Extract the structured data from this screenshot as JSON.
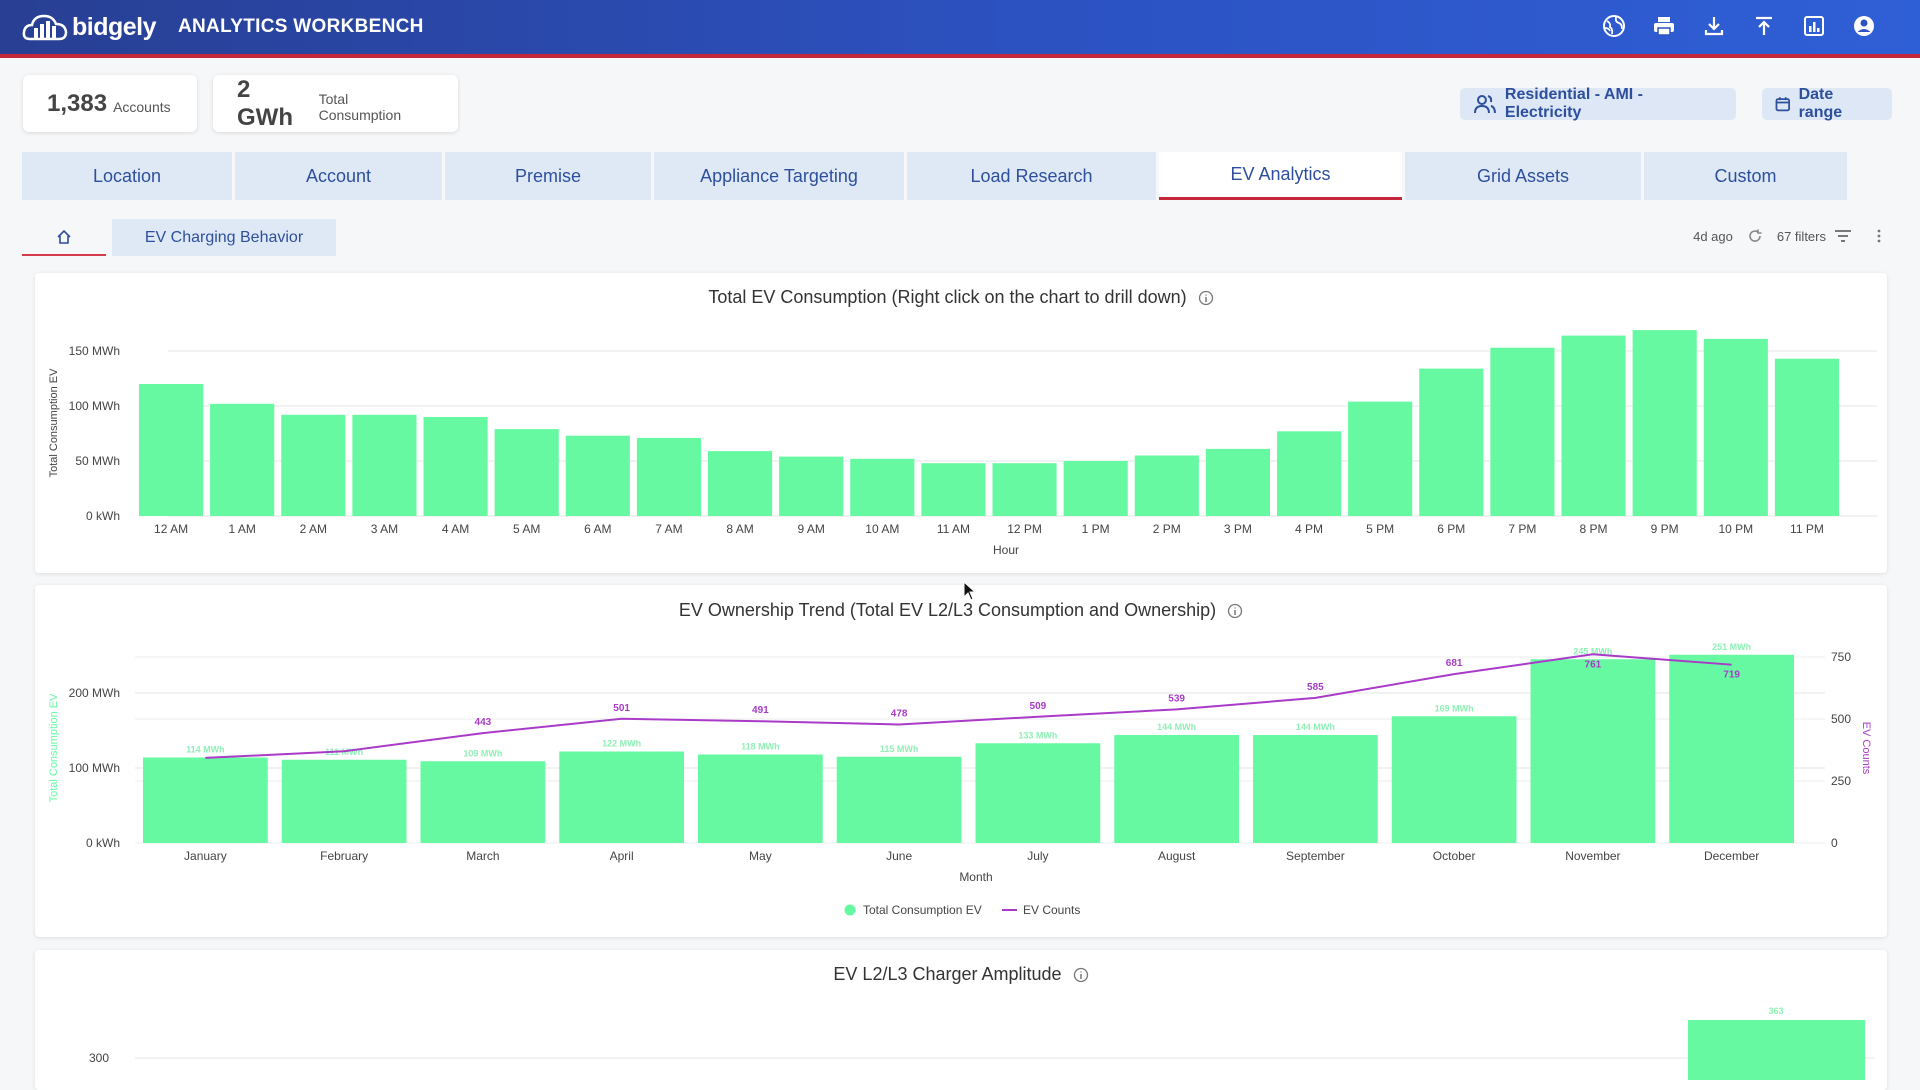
{
  "header": {
    "logo_text": "bidgely",
    "app_title": "ANALYTICS WORKBENCH",
    "icons": [
      "globe-icon",
      "print-icon",
      "download-icon",
      "upload-icon",
      "report-icon",
      "user-account-icon"
    ]
  },
  "kpis": [
    {
      "value": "1,383",
      "label": "Accounts"
    },
    {
      "value": "2 GWh",
      "label": "Total Consumption"
    }
  ],
  "segment_pill": "Residential - AMI - Electricity",
  "date_range_pill": "Date range",
  "tabs": [
    "Location",
    "Account",
    "Premise",
    "Appliance Targeting",
    "Load Research",
    "EV Analytics",
    "Grid Assets",
    "Custom"
  ],
  "active_tab": "EV Analytics",
  "subtab": "EV Charging Behavior",
  "refresh_age": "4d ago",
  "filters_label": "67 filters",
  "colors": {
    "bar": "#66f9a2",
    "line": "#a93bc8",
    "accent": "#c6263a",
    "brand": "#2c52c2"
  },
  "chart_data": [
    {
      "type": "bar",
      "title": "Total EV Consumption (Right click on the chart to drill down)",
      "xlabel": "Hour",
      "ylabel": "Total Consumption EV",
      "categories": [
        "12 AM",
        "1 AM",
        "2 AM",
        "3 AM",
        "4 AM",
        "5 AM",
        "6 AM",
        "7 AM",
        "8 AM",
        "9 AM",
        "10 AM",
        "11 AM",
        "12 PM",
        "1 PM",
        "2 PM",
        "3 PM",
        "4 PM",
        "5 PM",
        "6 PM",
        "7 PM",
        "8 PM",
        "9 PM",
        "10 PM",
        "11 PM"
      ],
      "values": [
        120,
        102,
        92,
        92,
        90,
        79,
        73,
        71,
        59,
        54,
        52,
        48,
        48,
        50,
        55,
        61,
        77,
        104,
        134,
        153,
        164,
        169,
        161,
        143
      ],
      "unit": "MWh",
      "ylim": [
        0,
        170
      ],
      "yticks": [
        {
          "v": 0,
          "label": "0 kWh"
        },
        {
          "v": 50,
          "label": "50 MWh"
        },
        {
          "v": 100,
          "label": "100 MWh"
        },
        {
          "v": 150,
          "label": "150 MWh"
        }
      ],
      "grid": true
    },
    {
      "type": "bar",
      "title": "EV Ownership Trend (Total EV L2/L3 Consumption and Ownership)",
      "xlabel": "Month",
      "ylabel": "Total Consumption EV",
      "y2label": "EV Counts",
      "categories": [
        "January",
        "February",
        "March",
        "April",
        "May",
        "June",
        "July",
        "August",
        "September",
        "October",
        "November",
        "December"
      ],
      "series": [
        {
          "name": "Total Consumption EV",
          "type": "bar",
          "values": [
            114,
            111,
            109,
            122,
            118,
            115,
            133,
            144,
            144,
            169,
            245,
            251
          ],
          "data_labels": [
            "114 MWh",
            "111 MWh",
            "109 MWh",
            "122 MWh",
            "118 MWh",
            "115 MWh",
            "133 MWh",
            "144 MWh",
            "144 MWh",
            "169 MWh",
            "245 MWh",
            "251 MWh"
          ]
        },
        {
          "name": "EV Counts",
          "type": "line",
          "axis": "right",
          "values": [
            343,
            370,
            443,
            501,
            491,
            478,
            509,
            539,
            585,
            681,
            761,
            719
          ]
        }
      ],
      "ylim": [
        0,
        250
      ],
      "yticks": [
        {
          "v": 0,
          "label": "0 kWh"
        },
        {
          "v": 100,
          "label": "100 MWh"
        },
        {
          "v": 200,
          "label": "200 MWh"
        }
      ],
      "y2lim": [
        0,
        750
      ],
      "y2ticks": [
        0,
        250,
        500,
        750
      ],
      "legend": "bottom-center",
      "grid": true
    },
    {
      "type": "bar",
      "title": "EV L2/L3 Charger Amplitude",
      "ytick_visible": "300",
      "visible_bar_value": 363,
      "visible_bar_label": "363"
    }
  ]
}
